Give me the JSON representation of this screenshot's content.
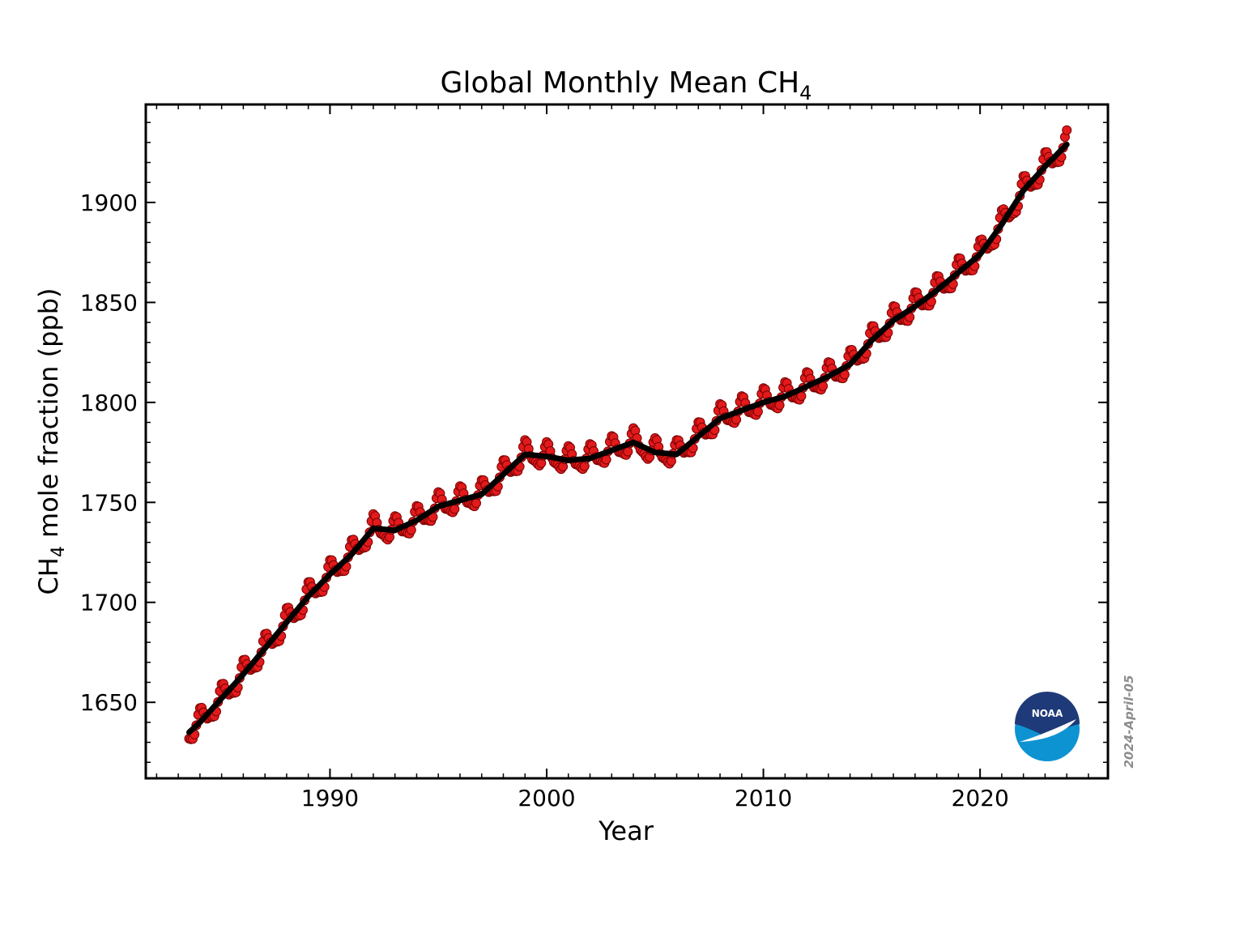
{
  "chart_data": {
    "type": "line",
    "title": "Global Monthly Mean CH",
    "title_subscript": "4",
    "xlabel": "Year",
    "ylabel_prefix": "CH",
    "ylabel_subscript": "4",
    "ylabel_suffix": " mole fraction (ppb)",
    "xlim": [
      1981.5,
      2025.9
    ],
    "ylim": [
      1612,
      1949
    ],
    "x_ticks": [
      1990,
      2000,
      2010,
      2020
    ],
    "y_ticks": [
      1650,
      1700,
      1750,
      1800,
      1850,
      1900
    ],
    "x_tick_labels": [
      "1990",
      "2000",
      "2010",
      "2020"
    ],
    "y_tick_labels": [
      "1650",
      "1700",
      "1750",
      "1800",
      "1850",
      "1900"
    ],
    "grid": false,
    "series": [
      {
        "role": "monthly_means",
        "style": "markers",
        "color": "#e31a1c",
        "seasonal_amplitude": 6,
        "x": [
          1983.5,
          1984,
          1985,
          1986,
          1987,
          1988,
          1989,
          1990,
          1991,
          1992,
          1993,
          1994,
          1995,
          1996,
          1997,
          1998,
          1999,
          2000,
          2001,
          2002,
          2003,
          2004,
          2005,
          2006,
          2007,
          2008,
          2009,
          2010,
          2011,
          2012,
          2013,
          2014,
          2015,
          2016,
          2017,
          2018,
          2019,
          2020,
          2021,
          2022,
          2023,
          2024
        ],
        "y": [
          1635,
          1640,
          1652,
          1664,
          1677,
          1690,
          1703,
          1714,
          1724,
          1737,
          1736,
          1741,
          1748,
          1751,
          1754,
          1764,
          1774,
          1773,
          1771,
          1772,
          1776,
          1780,
          1775,
          1774,
          1783,
          1792,
          1796,
          1800,
          1803,
          1808,
          1813,
          1819,
          1831,
          1841,
          1848,
          1856,
          1865,
          1874,
          1889,
          1906,
          1918,
          1929
        ]
      },
      {
        "role": "deseasonalized_trend",
        "style": "line",
        "color": "#000000",
        "x": [
          1983.5,
          1984,
          1985,
          1986,
          1987,
          1988,
          1989,
          1990,
          1991,
          1992,
          1993,
          1994,
          1995,
          1996,
          1997,
          1998,
          1999,
          2000,
          2001,
          2002,
          2003,
          2004,
          2005,
          2006,
          2007,
          2008,
          2009,
          2010,
          2011,
          2012,
          2013,
          2014,
          2015,
          2016,
          2017,
          2018,
          2019,
          2020,
          2021,
          2022,
          2023,
          2024
        ],
        "y": [
          1635,
          1640,
          1652,
          1664,
          1677,
          1690,
          1703,
          1714,
          1724,
          1737,
          1736,
          1741,
          1748,
          1751,
          1754,
          1764,
          1774,
          1773,
          1771,
          1772,
          1776,
          1780,
          1775,
          1774,
          1783,
          1792,
          1796,
          1800,
          1803,
          1808,
          1813,
          1819,
          1831,
          1841,
          1848,
          1856,
          1865,
          1874,
          1889,
          1906,
          1918,
          1929
        ]
      }
    ],
    "annotations": {
      "date_stamp": "2024-April-05",
      "logo_text": "NOAA"
    }
  }
}
